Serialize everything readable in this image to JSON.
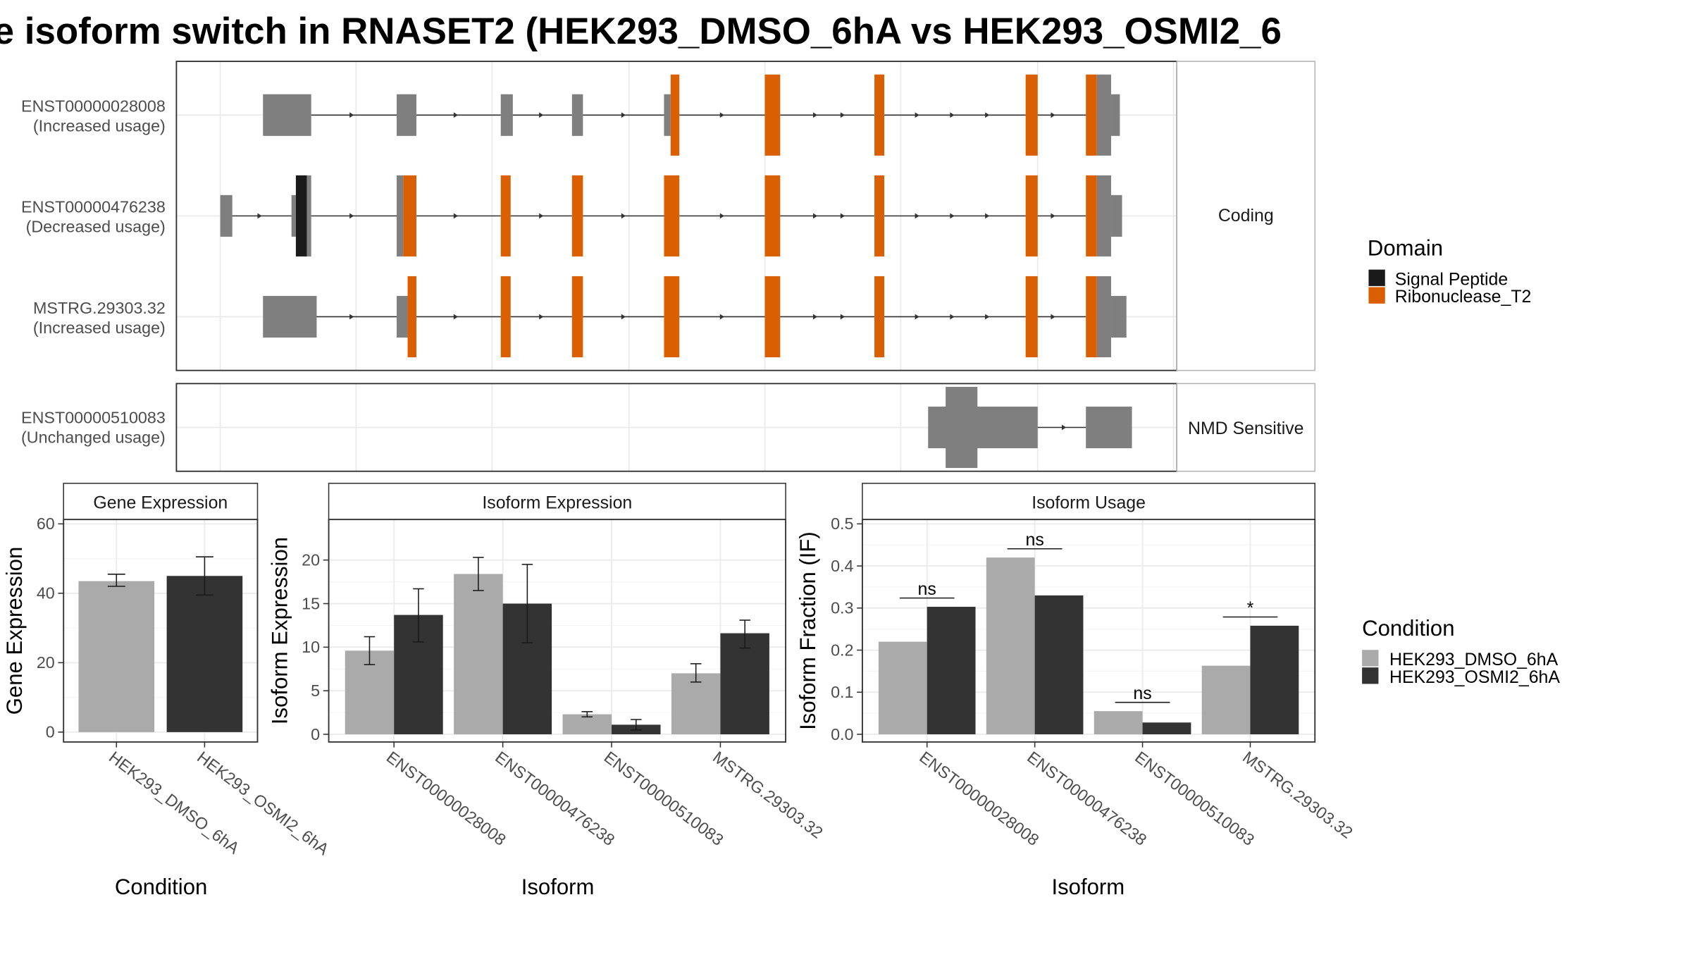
{
  "title": "e isoform switch in RNASET2 (HEK293_DMSO_6hA vs HEK293_OSMI2_6",
  "colors": {
    "exon": "#7f7f7f",
    "signal_peptide": "#1a1a1a",
    "ribonuclease": "#d95f02",
    "dmso": "#aaaaaa",
    "osmi2": "#333333",
    "grid": "#ebebeb",
    "frame": "#333333",
    "strip_border": "#b3b3b3"
  },
  "structure": {
    "facets": [
      {
        "id": "coding",
        "label": "Coding",
        "rows": [
          {
            "name": "ENST00000028008",
            "usage": "(Increased usage)"
          },
          {
            "name": "ENST00000476238",
            "usage": "(Decreased usage)"
          },
          {
            "name": "MSTRG.29303.32",
            "usage": "(Increased usage)"
          }
        ]
      },
      {
        "id": "nmd",
        "label": "NMD Sensitive",
        "rows": [
          {
            "name": "ENST00000510083",
            "usage": "(Unchanged usage)"
          }
        ]
      }
    ],
    "legend": {
      "title": "Domain",
      "items": [
        {
          "label": "Signal Peptide",
          "color_key": "signal_peptide"
        },
        {
          "label": "Ribonuclease_T2",
          "color_key": "ribonuclease"
        }
      ]
    }
  },
  "condition_legend": {
    "title": "Condition",
    "items": [
      {
        "label": "HEK293_DMSO_6hA",
        "color_key": "dmso"
      },
      {
        "label": "HEK293_OSMI2_6hA",
        "color_key": "osmi2"
      }
    ]
  },
  "chart_data": [
    {
      "type": "bar",
      "title": "Gene Expression",
      "xlabel": "Condition",
      "ylabel": "Gene Expression",
      "ylim": [
        0,
        60
      ],
      "yticks": [
        0,
        20,
        40,
        60
      ],
      "categories": [
        "HEK293_DMSO_6hA",
        "HEK293_OSMI2_6hA"
      ],
      "values": [
        43.5,
        45.0
      ],
      "errors": [
        [
          42.0,
          45.5
        ],
        [
          39.5,
          50.5
        ]
      ]
    },
    {
      "type": "bar",
      "title": "Isoform Expression",
      "xlabel": "Isoform",
      "ylabel": "Isoform Expression",
      "ylim": [
        0,
        24
      ],
      "yticks": [
        0,
        5,
        10,
        15,
        20
      ],
      "categories": [
        "ENST00000028008",
        "ENST00000476238",
        "ENST00000510083",
        "MSTRG.29303.32"
      ],
      "series": [
        {
          "name": "HEK293_DMSO_6hA",
          "values": [
            9.6,
            18.4,
            2.3,
            7.0
          ],
          "errors": [
            [
              8.0,
              11.2
            ],
            [
              16.5,
              20.3
            ],
            [
              2.0,
              2.6
            ],
            [
              6.0,
              8.1
            ]
          ]
        },
        {
          "name": "HEK293_OSMI2_6hA",
          "values": [
            13.7,
            15.0,
            1.1,
            11.6
          ],
          "errors": [
            [
              10.6,
              16.7
            ],
            [
              10.5,
              19.5
            ],
            [
              0.5,
              1.7
            ],
            [
              9.9,
              13.1
            ]
          ]
        }
      ]
    },
    {
      "type": "bar",
      "title": "Isoform Usage",
      "xlabel": "Isoform",
      "ylabel": "Isoform Fraction (IF)",
      "ylim": [
        0,
        0.5
      ],
      "yticks": [
        0.0,
        0.1,
        0.2,
        0.3,
        0.4,
        0.5
      ],
      "yticklabels": [
        "0.0",
        "0.1",
        "0.2",
        "0.3",
        "0.4",
        "0.5"
      ],
      "categories": [
        "ENST00000028008",
        "ENST00000476238",
        "ENST00000510083",
        "MSTRG.29303.32"
      ],
      "series": [
        {
          "name": "HEK293_DMSO_6hA",
          "values": [
            0.22,
            0.42,
            0.055,
            0.163
          ]
        },
        {
          "name": "HEK293_OSMI2_6hA",
          "values": [
            0.303,
            0.33,
            0.028,
            0.258
          ]
        }
      ],
      "significance": [
        "ns",
        "ns",
        "ns",
        "*"
      ]
    }
  ]
}
